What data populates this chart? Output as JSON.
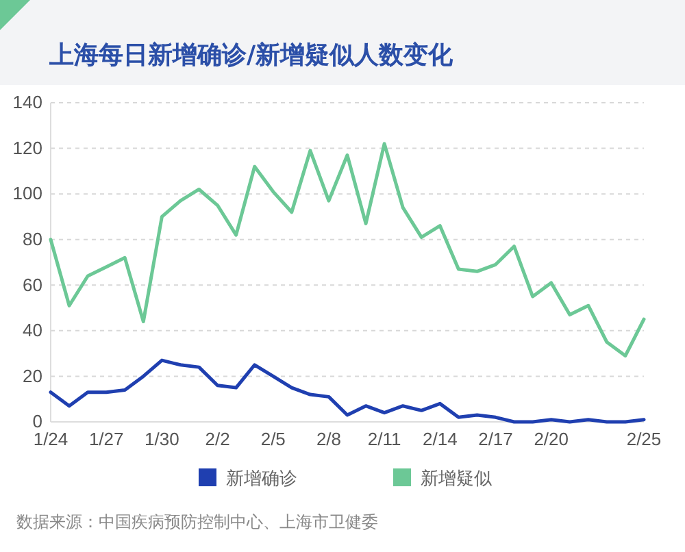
{
  "chart_data": {
    "type": "line",
    "title": "上海每日新增确诊/新增疑似人数变化",
    "categories": [
      "1/24",
      null,
      null,
      "1/27",
      null,
      null,
      "1/30",
      null,
      null,
      "2/2",
      null,
      null,
      "2/5",
      null,
      null,
      "2/8",
      null,
      null,
      "2/11",
      null,
      null,
      "2/14",
      null,
      null,
      "2/17",
      null,
      null,
      "2/20",
      null,
      null,
      null,
      null,
      "2/25"
    ],
    "series": [
      {
        "name": "新增确诊",
        "color": "#1f3fb0",
        "values": [
          13,
          7,
          13,
          13,
          14,
          20,
          27,
          25,
          24,
          16,
          15,
          25,
          20,
          15,
          12,
          11,
          3,
          7,
          4,
          7,
          5,
          8,
          2,
          3,
          2,
          0,
          0,
          1,
          0,
          1,
          0,
          0,
          1
        ]
      },
      {
        "name": "新增疑似",
        "color": "#6cc896",
        "values": [
          80,
          51,
          64,
          68,
          72,
          44,
          90,
          97,
          102,
          95,
          82,
          112,
          101,
          92,
          119,
          97,
          117,
          87,
          122,
          94,
          81,
          86,
          67,
          66,
          69,
          77,
          55,
          61,
          47,
          51,
          35,
          29,
          45
        ]
      }
    ],
    "ylim": [
      0,
      140
    ],
    "yticks": [
      0,
      20,
      40,
      60,
      80,
      100,
      120,
      140
    ],
    "grid": "y",
    "legend": "bottom",
    "marker": "none",
    "line_style": "solid",
    "annotations": [
      "数据来源：中国疾病预防控制中心、上海市卫健委"
    ]
  }
}
